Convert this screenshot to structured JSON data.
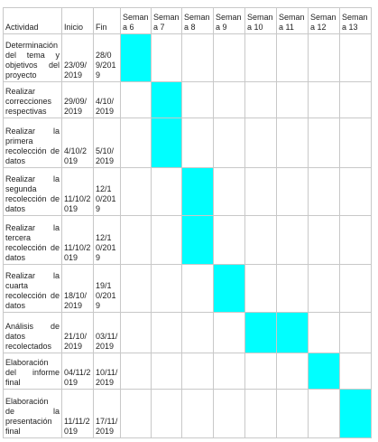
{
  "table": {
    "header": [
      "Actividad",
      "Inicio",
      "Fin",
      "Semana 6",
      "Semana 7",
      "Semana 8",
      "Semana 9",
      "Semana 10",
      "Semana 11",
      "Semana 12",
      "Semana 13"
    ],
    "rows": [
      [
        "Determinación del tema y objetivos del proyecto",
        "23/09/2019",
        "28/09/2019"
      ],
      [
        "Realizar correcciones respectivas",
        "29/09/2019",
        "4/10/2019"
      ],
      [
        "Realizar la primera recolección de datos",
        "4/10/2019",
        "5/10/2019"
      ],
      [
        "Realizar la segunda recolección de datos",
        "11/10/2019",
        "12/10/2019"
      ],
      [
        "Realizar la tercera recolección de datos",
        "11/10/2019",
        "12/10/2019"
      ],
      [
        "Realizar la cuarta recolección de datos",
        "18/10/2019",
        "19/10/2019"
      ],
      [
        "Análisis de datos recolectados",
        "21/10/2019",
        "03/11/2019"
      ],
      [
        "Elaboración del informe final",
        "04/11/2019",
        "10/11/2019"
      ],
      [
        "Elaboración de la presentación final",
        "11/11/2019",
        "17/11/2019"
      ]
    ]
  }
}
